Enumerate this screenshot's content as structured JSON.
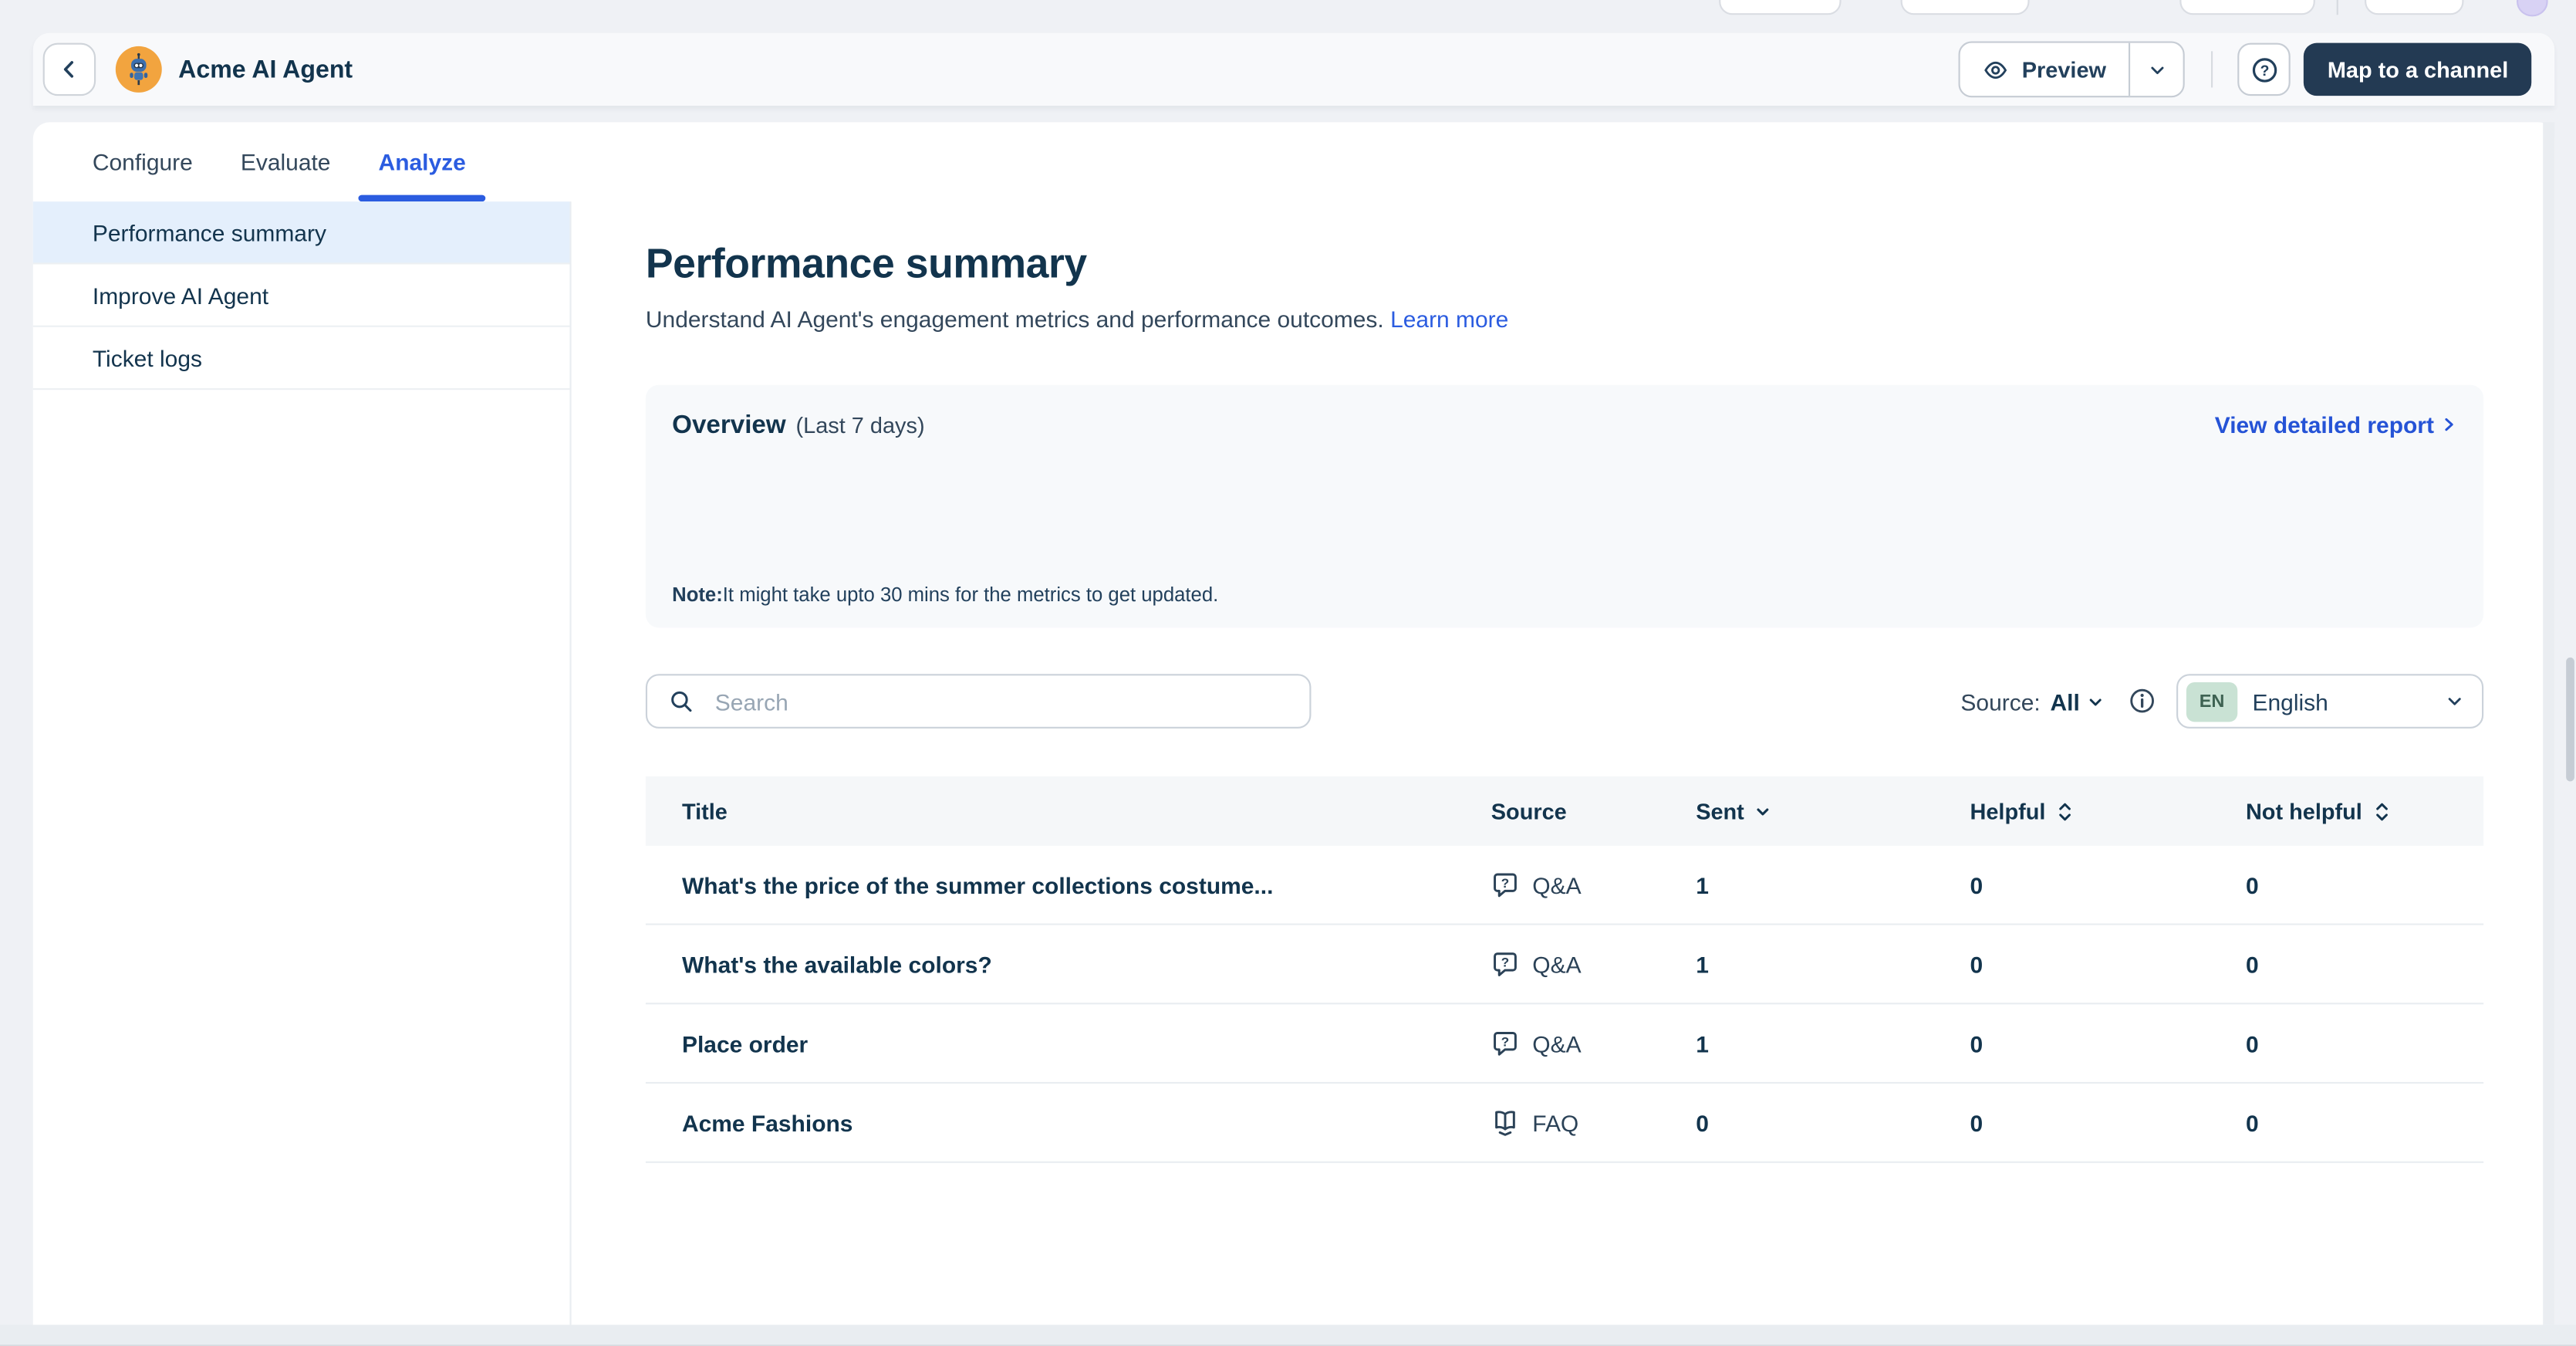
{
  "header": {
    "agent_name": "Acme AI Agent",
    "preview_label": "Preview",
    "map_button_label": "Map to a channel"
  },
  "tabs": [
    {
      "label": "Configure",
      "active": false
    },
    {
      "label": "Evaluate",
      "active": false
    },
    {
      "label": "Analyze",
      "active": true
    }
  ],
  "sidebar": {
    "items": [
      {
        "label": "Performance summary",
        "active": true
      },
      {
        "label": "Improve AI Agent",
        "active": false
      },
      {
        "label": "Ticket logs",
        "active": false
      }
    ]
  },
  "main": {
    "title": "Performance summary",
    "description": "Understand AI Agent's engagement metrics and performance outcomes.",
    "learn_more_label": "Learn more",
    "overview": {
      "title": "Overview",
      "period": "(Last 7 days)",
      "report_link_label": "View detailed report",
      "note_label": "Note:",
      "note_text": "It might take upto 30 mins for the metrics to get updated."
    },
    "search": {
      "placeholder": "Search",
      "value": ""
    },
    "source_filter": {
      "label": "Source:",
      "value": "All"
    },
    "language_select": {
      "badge": "EN",
      "value": "English"
    }
  },
  "table": {
    "columns": [
      {
        "label": "Title",
        "sort": "none"
      },
      {
        "label": "Source",
        "sort": "none"
      },
      {
        "label": "Sent",
        "sort": "down"
      },
      {
        "label": "Helpful",
        "sort": "updown"
      },
      {
        "label": "Not helpful",
        "sort": "updown"
      }
    ],
    "rows": [
      {
        "title": "What's the price of the summer collections costume...",
        "source": {
          "icon": "qa-icon",
          "label": "Q&A"
        },
        "sent": "1",
        "helpful": "0",
        "not_helpful": "0"
      },
      {
        "title": "What's the available colors?",
        "source": {
          "icon": "qa-icon",
          "label": "Q&A"
        },
        "sent": "1",
        "helpful": "0",
        "not_helpful": "0"
      },
      {
        "title": "Place order",
        "source": {
          "icon": "qa-icon",
          "label": "Q&A"
        },
        "sent": "1",
        "helpful": "0",
        "not_helpful": "0"
      },
      {
        "title": "Acme Fashions",
        "source": {
          "icon": "faq-icon",
          "label": "FAQ"
        },
        "sent": "0",
        "helpful": "0",
        "not_helpful": "0"
      }
    ]
  },
  "colors": {
    "accent": "#2b5ce0",
    "dark_navy": "#12344d",
    "text_secondary": "#33475b",
    "active_item_bg": "#e4effc",
    "map_button_bg": "#233a53",
    "en_badge_bg": "#c9e2d4",
    "en_badge_text": "#3e6252",
    "link_blue": "#2553d6"
  }
}
